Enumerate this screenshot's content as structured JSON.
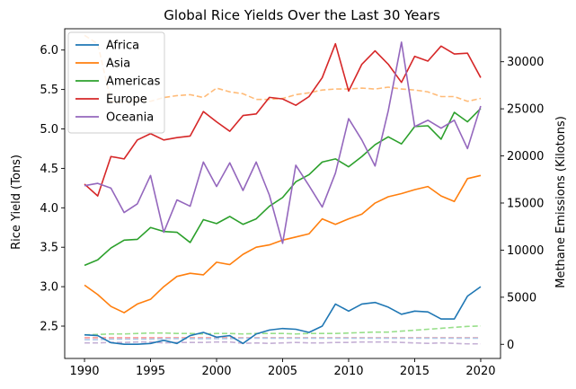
{
  "chart_data": {
    "type": "line",
    "title": "Global Rice Yields Over the Last 30 Years",
    "xlabel": "",
    "ylabel": "Rice Yield (Tons)",
    "y2label": "Methane Emissions (Kilotons)",
    "xlim": [
      1988.5,
      2021.5
    ],
    "ylim": [
      2.09,
      6.27
    ],
    "y2lim": [
      -1500,
      33500
    ],
    "x_ticks": [
      1990,
      1995,
      2000,
      2005,
      2010,
      2015,
      2020
    ],
    "y_ticks": [
      2.5,
      3.0,
      3.5,
      4.0,
      4.5,
      5.0,
      5.5,
      6.0
    ],
    "y2_ticks": [
      0,
      5000,
      10000,
      15000,
      20000,
      25000,
      30000
    ],
    "legend_position": "upper-left",
    "grid": false,
    "x": [
      1990,
      1991,
      1992,
      1993,
      1994,
      1995,
      1996,
      1997,
      1998,
      1999,
      2000,
      2001,
      2002,
      2003,
      2004,
      2005,
      2006,
      2007,
      2008,
      2009,
      2010,
      2011,
      2012,
      2013,
      2014,
      2015,
      2016,
      2017,
      2018,
      2019,
      2020
    ],
    "series": [
      {
        "name": "Africa",
        "color": "#1f77b4",
        "values": [
          2.39,
          2.38,
          2.29,
          2.27,
          2.27,
          2.28,
          2.32,
          2.28,
          2.38,
          2.42,
          2.36,
          2.38,
          2.28,
          2.4,
          2.45,
          2.47,
          2.46,
          2.42,
          2.5,
          2.78,
          2.69,
          2.78,
          2.8,
          2.74,
          2.65,
          2.69,
          2.68,
          2.59,
          2.59,
          2.88,
          3.0
        ]
      },
      {
        "name": "Asia",
        "color": "#ff7f0e",
        "values": [
          3.02,
          2.9,
          2.75,
          2.67,
          2.78,
          2.84,
          3.0,
          3.13,
          3.17,
          3.15,
          3.31,
          3.28,
          3.41,
          3.5,
          3.53,
          3.59,
          3.63,
          3.67,
          3.86,
          3.79,
          3.86,
          3.92,
          4.06,
          4.14,
          4.18,
          4.23,
          4.27,
          4.15,
          4.08,
          4.37,
          4.41
        ]
      },
      {
        "name": "Americas",
        "color": "#2ca02c",
        "values": [
          3.27,
          3.34,
          3.49,
          3.59,
          3.6,
          3.75,
          3.7,
          3.69,
          3.56,
          3.85,
          3.8,
          3.89,
          3.79,
          3.86,
          4.02,
          4.13,
          4.33,
          4.42,
          4.58,
          4.62,
          4.52,
          4.65,
          4.8,
          4.9,
          4.81,
          5.03,
          5.04,
          4.87,
          5.21,
          5.09,
          5.26
        ]
      },
      {
        "name": "Europe",
        "color": "#d62728",
        "values": [
          4.3,
          4.15,
          4.65,
          4.62,
          4.86,
          4.94,
          4.86,
          4.89,
          4.91,
          5.22,
          5.09,
          4.97,
          5.17,
          5.19,
          5.4,
          5.38,
          5.3,
          5.41,
          5.65,
          6.08,
          5.48,
          5.82,
          5.99,
          5.82,
          5.59,
          5.92,
          5.86,
          6.05,
          5.95,
          5.96,
          5.65
        ]
      },
      {
        "name": "Oceania",
        "color": "#9467bd",
        "values": [
          4.28,
          4.31,
          4.25,
          3.94,
          4.05,
          4.41,
          3.69,
          4.1,
          4.02,
          4.58,
          4.27,
          4.57,
          4.22,
          4.58,
          4.16,
          3.55,
          4.54,
          4.28,
          4.01,
          4.44,
          5.13,
          4.86,
          4.53,
          5.23,
          6.1,
          5.03,
          5.11,
          5.01,
          5.11,
          4.75,
          5.29
        ]
      }
    ],
    "series_y2": [
      {
        "color": "#ffbb78",
        "style": "dashed",
        "values": [
          32800,
          31900,
          25800,
          25700,
          26000,
          25800,
          26200,
          26400,
          26500,
          26200,
          27200,
          26800,
          26600,
          26000,
          26000,
          26100,
          26500,
          26700,
          27000,
          27100,
          27100,
          27200,
          27100,
          27300,
          27100,
          27000,
          26800,
          26300,
          26300,
          25800,
          26100
        ]
      },
      {
        "color": "#98df8a",
        "style": "dashed",
        "values": [
          1000,
          1050,
          1100,
          1100,
          1150,
          1200,
          1200,
          1150,
          1150,
          1100,
          1150,
          1150,
          1100,
          1150,
          1150,
          1150,
          1100,
          1150,
          1150,
          1150,
          1200,
          1250,
          1300,
          1300,
          1400,
          1500,
          1600,
          1700,
          1800,
          1900,
          1950
        ]
      },
      {
        "color": "#ff9896",
        "style": "dashed",
        "values": [
          700,
          700,
          700,
          700,
          700,
          700,
          700,
          700,
          700,
          700,
          700,
          700,
          700,
          700,
          700,
          700,
          700,
          700,
          700,
          700,
          700,
          700,
          700,
          700,
          700,
          700,
          700,
          700,
          700,
          700,
          700
        ]
      },
      {
        "color": "#aec7e8",
        "style": "dashed",
        "values": [
          500,
          500,
          550,
          550,
          550,
          550,
          600,
          600,
          600,
          600,
          600,
          600,
          650,
          650,
          650,
          650,
          650,
          650,
          650,
          650,
          650,
          650,
          650,
          650,
          650,
          650,
          650,
          650,
          650,
          650,
          650
        ]
      },
      {
        "color": "#c5b0d5",
        "style": "dashed",
        "values": [
          150,
          150,
          200,
          200,
          250,
          250,
          150,
          200,
          200,
          200,
          250,
          250,
          100,
          150,
          100,
          150,
          200,
          150,
          150,
          200,
          200,
          250,
          250,
          250,
          200,
          150,
          100,
          150,
          100,
          50,
          50
        ]
      }
    ]
  }
}
